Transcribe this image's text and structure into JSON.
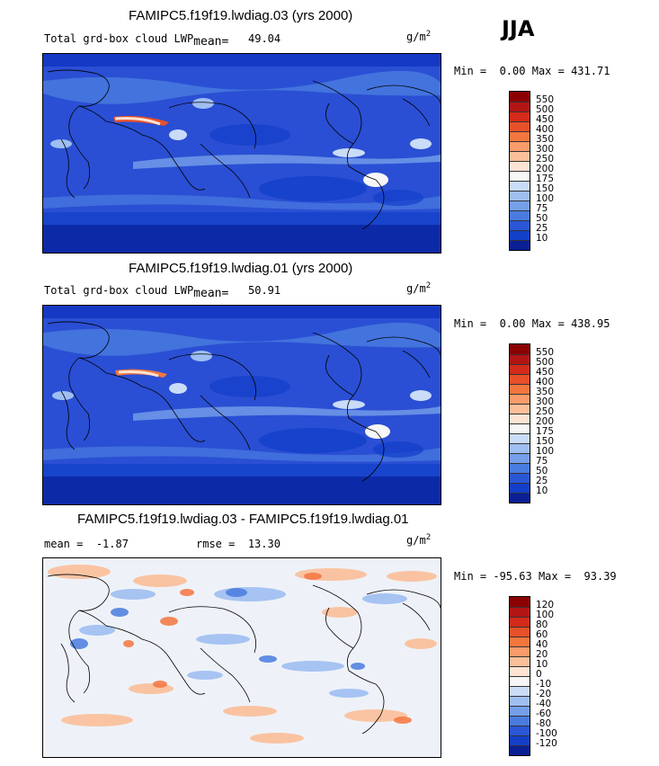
{
  "season": "JJA",
  "panels": [
    {
      "title": "FAMIPC5.f19f19.lwdiag.03 (yrs 2000)",
      "left_label": "Total grd-box cloud LWP",
      "mean_label": "mean=",
      "mean_value": "49.04",
      "units_base": "g/m",
      "units_exp": "2",
      "min_label": "Min =",
      "min_value": "0.00",
      "max_label": "Max =",
      "max_value": "431.71",
      "colorbar_labels": [
        "550",
        "500",
        "450",
        "400",
        "350",
        "300",
        "250",
        "200",
        "175",
        "150",
        "100",
        "75",
        "50",
        "25",
        "10"
      ],
      "colorbar_colors": [
        "#8b0000",
        "#b31414",
        "#d42a1b",
        "#e8502a",
        "#f4763f",
        "#f99b6a",
        "#fbbf99",
        "#fde3d3",
        "#f6f6f6",
        "#c9dcf8",
        "#9fbef2",
        "#759fe9",
        "#4a7cdf",
        "#2a57d6",
        "#133fc9",
        "#0a1f94"
      ],
      "base_color": "#2a4fd4"
    },
    {
      "title": "FAMIPC5.f19f19.lwdiag.01 (yrs 2000)",
      "left_label": "Total grd-box cloud LWP",
      "mean_label": "mean=",
      "mean_value": "50.91",
      "units_base": "g/m",
      "units_exp": "2",
      "min_label": "Min =",
      "min_value": "0.00",
      "max_label": "Max =",
      "max_value": "438.95",
      "colorbar_labels": [
        "550",
        "500",
        "450",
        "400",
        "350",
        "300",
        "250",
        "200",
        "175",
        "150",
        "100",
        "75",
        "50",
        "25",
        "10"
      ],
      "colorbar_colors": [
        "#8b0000",
        "#b31414",
        "#d42a1b",
        "#e8502a",
        "#f4763f",
        "#f99b6a",
        "#fbbf99",
        "#fde3d3",
        "#f6f6f6",
        "#c9dcf8",
        "#9fbef2",
        "#759fe9",
        "#4a7cdf",
        "#2a57d6",
        "#133fc9",
        "#0a1f94"
      ],
      "base_color": "#2a4fd4"
    },
    {
      "title": "FAMIPC5.f19f19.lwdiag.03 - FAMIPC5.f19f19.lwdiag.01",
      "mean_label": "mean =",
      "mean_value": "-1.87",
      "rmse_label": "rmse =",
      "rmse_value": "13.30",
      "units_base": "g/m",
      "units_exp": "2",
      "min_label": "Min =",
      "min_value": "-95.63",
      "max_label": "Max =",
      "max_value": "93.39",
      "colorbar_labels": [
        "120",
        "100",
        "80",
        "60",
        "40",
        "20",
        "10",
        "0",
        "-10",
        "-20",
        "-40",
        "-60",
        "-80",
        "-100",
        "-120"
      ],
      "colorbar_colors": [
        "#8b0000",
        "#b31414",
        "#d42a1b",
        "#e8502a",
        "#f4763f",
        "#f99b6a",
        "#fbbf99",
        "#fde3d3",
        "#f6f6f6",
        "#c9dcf8",
        "#9fbef2",
        "#759fe9",
        "#4a7cdf",
        "#2a57d6",
        "#133fc9",
        "#0a1f94"
      ],
      "base_color": "#e8eef8"
    }
  ]
}
